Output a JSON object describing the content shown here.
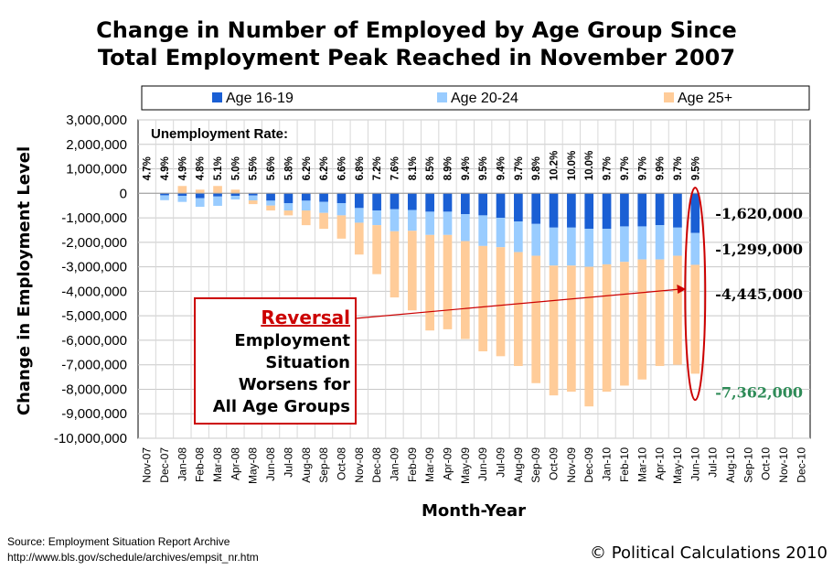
{
  "chart_data": {
    "type": "bar",
    "stacked": true,
    "title_line1": "Change in Number of Employed by Age Group Since",
    "title_line2": "Total Employment Peak Reached in November 2007",
    "xlabel": "Month-Year",
    "ylabel": "Change in Employment Level",
    "ylim": [
      -10000000,
      3000000
    ],
    "yticks": [
      "3,000,000",
      "2,000,000",
      "1,000,000",
      "0",
      "-1,000,000",
      "-2,000,000",
      "-3,000,000",
      "-4,000,000",
      "-5,000,000",
      "-6,000,000",
      "-7,000,000",
      "-8,000,000",
      "-9,000,000",
      "-10,000,000"
    ],
    "ytick_values": [
      3000000,
      2000000,
      1000000,
      0,
      -1000000,
      -2000000,
      -3000000,
      -4000000,
      -5000000,
      -6000000,
      -7000000,
      -8000000,
      -9000000,
      -10000000
    ],
    "grid": true,
    "legend_position": "top",
    "categories": [
      "Nov-07",
      "Dec-07",
      "Jan-08",
      "Feb-08",
      "Mar-08",
      "Apr-08",
      "May-08",
      "Jun-08",
      "Jul-08",
      "Aug-08",
      "Sep-08",
      "Oct-08",
      "Nov-08",
      "Dec-08",
      "Jan-09",
      "Feb-09",
      "Mar-09",
      "Apr-09",
      "May-09",
      "Jun-09",
      "Jul-09",
      "Aug-09",
      "Sep-09",
      "Oct-09",
      "Nov-09",
      "Dec-09",
      "Jan-10",
      "Feb-10",
      "Mar-10",
      "Apr-10",
      "May-10",
      "Jun-10",
      "Jul-10",
      "Aug-10",
      "Sep-10",
      "Oct-10",
      "Nov-10",
      "Dec-10"
    ],
    "series": [
      {
        "name": "Age 16-19",
        "color": "#1a5fd4",
        "values": [
          0,
          -80000,
          -100000,
          -200000,
          -130000,
          -100000,
          -90000,
          -300000,
          -400000,
          -300000,
          -350000,
          -400000,
          -600000,
          -700000,
          -650000,
          -680000,
          -750000,
          -750000,
          -850000,
          -900000,
          -1000000,
          -1150000,
          -1250000,
          -1400000,
          -1400000,
          -1450000,
          -1450000,
          -1350000,
          -1350000,
          -1300000,
          -1400000,
          -1620000,
          null,
          null,
          null,
          null,
          null,
          null
        ]
      },
      {
        "name": "Age 20-24",
        "color": "#99ccff",
        "values": [
          0,
          -200000,
          -250000,
          -350000,
          -380000,
          -150000,
          -200000,
          -200000,
          -300000,
          -400000,
          -450000,
          -500000,
          -600000,
          -600000,
          -900000,
          -850000,
          -950000,
          -950000,
          -1100000,
          -1250000,
          -1200000,
          -1250000,
          -1300000,
          -1550000,
          -1550000,
          -1550000,
          -1450000,
          -1450000,
          -1350000,
          -1400000,
          -1150000,
          -1299000,
          null,
          null,
          null,
          null,
          null,
          null
        ]
      },
      {
        "name": "Age 25+",
        "color": "#ffcc99",
        "values": [
          0,
          0,
          300000,
          150000,
          300000,
          150000,
          -150000,
          -200000,
          -200000,
          -600000,
          -650000,
          -950000,
          -1300000,
          -2000000,
          -2700000,
          -3250000,
          -3900000,
          -3850000,
          -4000000,
          -4300000,
          -4450000,
          -4650000,
          -5200000,
          -5300000,
          -5150000,
          -5700000,
          -5200000,
          -5050000,
          -4900000,
          -4350000,
          -4450000,
          -4445000,
          null,
          null,
          null,
          null,
          null,
          null
        ]
      }
    ],
    "unemployment_rate_label": "Unemployment Rate:",
    "unemployment_rates": [
      "4.7%",
      "4.9%",
      "4.9%",
      "4.8%",
      "5.1%",
      "5.0%",
      "5.5%",
      "5.6%",
      "5.8%",
      "6.2%",
      "6.2%",
      "6.6%",
      "6.8%",
      "7.2%",
      "7.6%",
      "8.1%",
      "8.5%",
      "8.9%",
      "9.4%",
      "9.5%",
      "9.4%",
      "9.7%",
      "9.8%",
      "10.2%",
      "10.0%",
      "10.0%",
      "9.7%",
      "9.7%",
      "9.7%",
      "9.9%",
      "9.7%",
      "9.5%",
      "",
      "",
      "",
      "",
      "",
      ""
    ],
    "value_labels": [
      {
        "text": "-1,620,000",
        "color": "#000000"
      },
      {
        "text": "-1,299,000",
        "color": "#000000"
      },
      {
        "text": "-4,445,000",
        "color": "#000000"
      },
      {
        "text": "-7,362,000",
        "color": "#2e8b57"
      }
    ],
    "annotation": {
      "heading": "Reversal",
      "lines": [
        "Employment",
        "Situation",
        "Worsens for",
        "All Age Groups"
      ],
      "color": "#cc0000"
    }
  },
  "footer": {
    "source_line1": "Source: Employment Situation Report Archive",
    "source_line2": "http://www.bls.gov/schedule/archives/empsit_nr.htm",
    "copyright": "© Political Calculations 2010"
  }
}
